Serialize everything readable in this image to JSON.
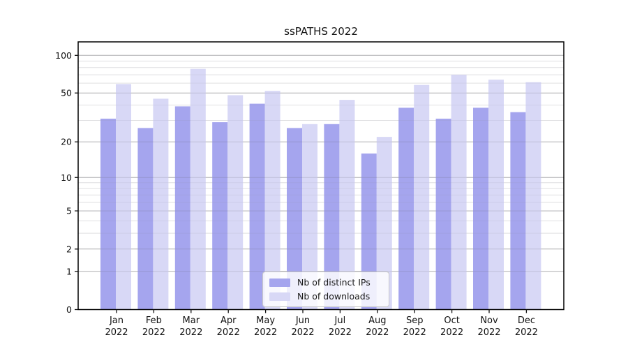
{
  "chart_data": {
    "type": "bar",
    "title": "ssPATHS 2022",
    "categories": [
      "Jan 2022",
      "Feb 2022",
      "Mar 2022",
      "Apr 2022",
      "May 2022",
      "Jun 2022",
      "Jul 2022",
      "Aug 2022",
      "Sep 2022",
      "Oct 2022",
      "Nov 2022",
      "Dec 2022"
    ],
    "series": [
      {
        "name": "Nb of distinct IPs",
        "color": "#a5a5ee",
        "values": [
          31,
          26,
          39,
          29,
          41,
          26,
          28,
          16,
          38,
          31,
          38,
          35
        ]
      },
      {
        "name": "Nb of downloads",
        "color": "#d8d8f6",
        "values": [
          59,
          45,
          78,
          48,
          52,
          28,
          44,
          22,
          58,
          70,
          64,
          61
        ]
      }
    ],
    "xlabel": "",
    "ylabel": "",
    "yscale": "symlog (log1p)",
    "ylim": [
      0,
      128
    ],
    "yticks": [
      100,
      50,
      20,
      10,
      5,
      2,
      1,
      0
    ],
    "minor_gridlines": [
      3,
      4,
      6,
      7,
      8,
      9,
      30,
      40,
      60,
      70,
      80,
      90
    ],
    "grid": true,
    "legend_position": "bottom-center",
    "colors": {
      "major_grid": "#c6c6c6",
      "minor_grid": "#ececec",
      "spine": "#000000",
      "background": "#ffffff"
    }
  }
}
